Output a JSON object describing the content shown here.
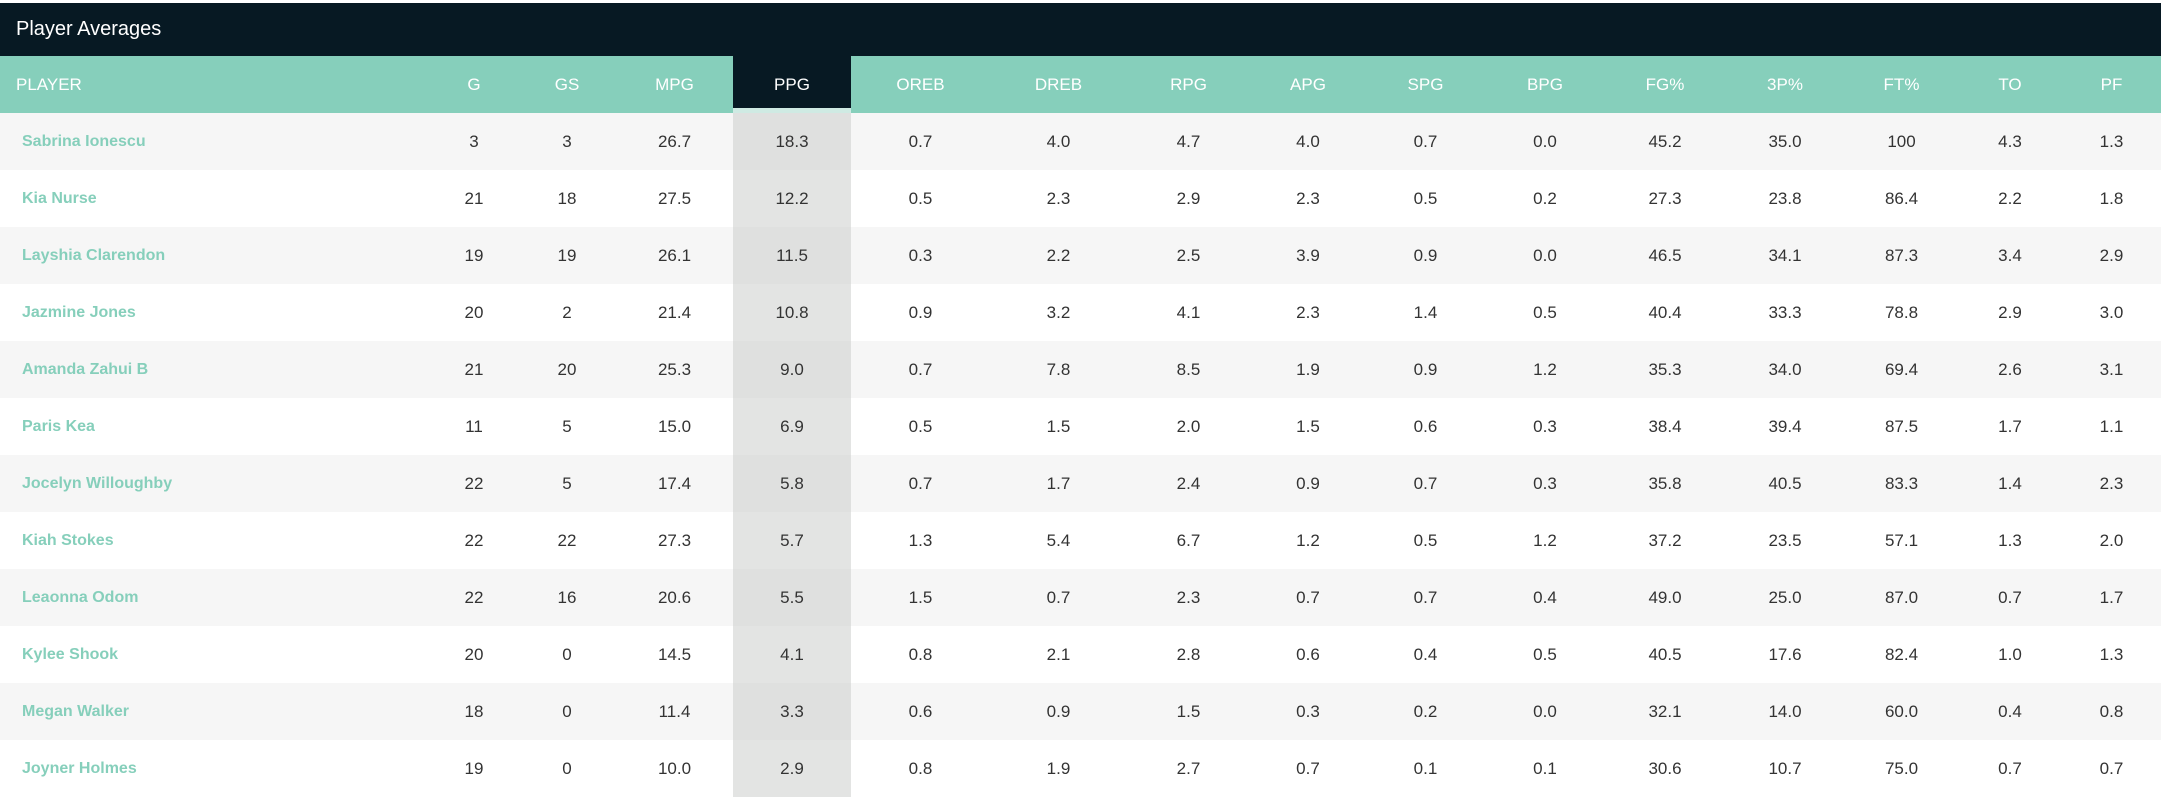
{
  "title": "Player Averages",
  "colors": {
    "header_bg": "#071923",
    "accent": "#86cfbb",
    "highlight_column": "#e3e4e3"
  },
  "columns": [
    "PLAYER",
    "G",
    "GS",
    "MPG",
    "PPG",
    "OREB",
    "DREB",
    "RPG",
    "APG",
    "SPG",
    "BPG",
    "FG%",
    "3P%",
    "FT%",
    "TO",
    "PF"
  ],
  "sorted_column": "PPG",
  "rows": [
    [
      "Sabrina Ionescu",
      "3",
      "3",
      "26.7",
      "18.3",
      "0.7",
      "4.0",
      "4.7",
      "4.0",
      "0.7",
      "0.0",
      "45.2",
      "35.0",
      "100",
      "4.3",
      "1.3"
    ],
    [
      "Kia Nurse",
      "21",
      "18",
      "27.5",
      "12.2",
      "0.5",
      "2.3",
      "2.9",
      "2.3",
      "0.5",
      "0.2",
      "27.3",
      "23.8",
      "86.4",
      "2.2",
      "1.8"
    ],
    [
      "Layshia Clarendon",
      "19",
      "19",
      "26.1",
      "11.5",
      "0.3",
      "2.2",
      "2.5",
      "3.9",
      "0.9",
      "0.0",
      "46.5",
      "34.1",
      "87.3",
      "3.4",
      "2.9"
    ],
    [
      "Jazmine Jones",
      "20",
      "2",
      "21.4",
      "10.8",
      "0.9",
      "3.2",
      "4.1",
      "2.3",
      "1.4",
      "0.5",
      "40.4",
      "33.3",
      "78.8",
      "2.9",
      "3.0"
    ],
    [
      "Amanda Zahui B",
      "21",
      "20",
      "25.3",
      "9.0",
      "0.7",
      "7.8",
      "8.5",
      "1.9",
      "0.9",
      "1.2",
      "35.3",
      "34.0",
      "69.4",
      "2.6",
      "3.1"
    ],
    [
      "Paris Kea",
      "11",
      "5",
      "15.0",
      "6.9",
      "0.5",
      "1.5",
      "2.0",
      "1.5",
      "0.6",
      "0.3",
      "38.4",
      "39.4",
      "87.5",
      "1.7",
      "1.1"
    ],
    [
      "Jocelyn Willoughby",
      "22",
      "5",
      "17.4",
      "5.8",
      "0.7",
      "1.7",
      "2.4",
      "0.9",
      "0.7",
      "0.3",
      "35.8",
      "40.5",
      "83.3",
      "1.4",
      "2.3"
    ],
    [
      "Kiah Stokes",
      "22",
      "22",
      "27.3",
      "5.7",
      "1.3",
      "5.4",
      "6.7",
      "1.2",
      "0.5",
      "1.2",
      "37.2",
      "23.5",
      "57.1",
      "1.3",
      "2.0"
    ],
    [
      "Leaonna Odom",
      "22",
      "16",
      "20.6",
      "5.5",
      "1.5",
      "0.7",
      "2.3",
      "0.7",
      "0.7",
      "0.4",
      "49.0",
      "25.0",
      "87.0",
      "0.7",
      "1.7"
    ],
    [
      "Kylee Shook",
      "20",
      "0",
      "14.5",
      "4.1",
      "0.8",
      "2.1",
      "2.8",
      "0.6",
      "0.4",
      "0.5",
      "40.5",
      "17.6",
      "82.4",
      "1.0",
      "1.3"
    ],
    [
      "Megan Walker",
      "18",
      "0",
      "11.4",
      "3.3",
      "0.6",
      "0.9",
      "1.5",
      "0.3",
      "0.2",
      "0.0",
      "32.1",
      "14.0",
      "60.0",
      "0.4",
      "0.8"
    ],
    [
      "Joyner Holmes",
      "19",
      "0",
      "10.0",
      "2.9",
      "0.8",
      "1.9",
      "2.7",
      "0.7",
      "0.1",
      "0.1",
      "30.6",
      "10.7",
      "75.0",
      "0.7",
      "0.7"
    ]
  ]
}
